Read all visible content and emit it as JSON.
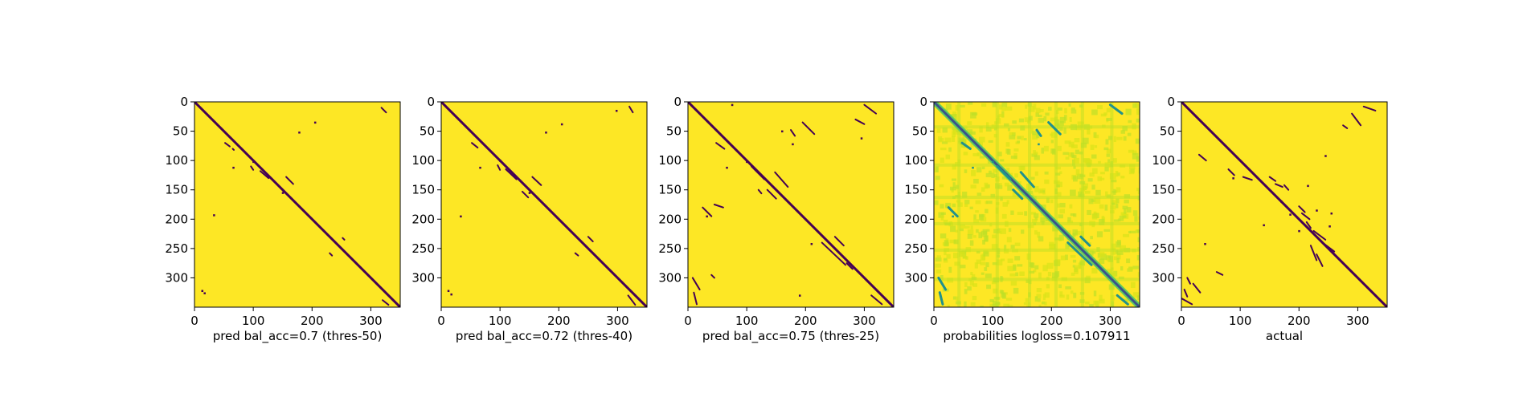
{
  "colors": {
    "background": "#fde725",
    "mark": "#440154",
    "teal": "#21918c",
    "green": "#5ec962",
    "light": "#bddf26",
    "axis": "#000000"
  },
  "chart_data": [
    {
      "type": "heatmap",
      "title": "",
      "xlabel": "pred bal_acc=0.7 (thres-50)",
      "ylabel": "",
      "xlim": [
        0,
        350
      ],
      "ylim": [
        350,
        0
      ],
      "x_ticks": [
        0,
        100,
        200,
        300
      ],
      "y_ticks": [
        0,
        50,
        100,
        150,
        200,
        250,
        300
      ],
      "colormap": "viridis",
      "features": {
        "diagonal": true,
        "segments": [
          [
            52,
            70,
            60,
            76
          ],
          [
            112,
            118,
            126,
            130
          ],
          [
            156,
            128,
            168,
            140
          ],
          [
            96,
            110,
            100,
            116
          ],
          [
            65,
            80,
            67,
            82
          ],
          [
            318,
            10,
            326,
            18
          ],
          [
            320,
            338,
            330,
            346
          ],
          [
            252,
            232,
            255,
            235
          ],
          [
            230,
            258,
            234,
            262
          ]
        ],
        "dots": [
          [
            33,
            193
          ],
          [
            13,
            322
          ],
          [
            17,
            326
          ],
          [
            178,
            52
          ],
          [
            205,
            35
          ],
          [
            66,
            112
          ],
          [
            150,
            155
          ],
          [
            100,
            102
          ]
        ]
      }
    },
    {
      "type": "heatmap",
      "title": "",
      "xlabel": "pred bal_acc=0.72 (thres-40)",
      "ylabel": "",
      "xlim": [
        0,
        350
      ],
      "ylim": [
        350,
        0
      ],
      "x_ticks": [
        0,
        100,
        200,
        300
      ],
      "y_ticks": [
        0,
        50,
        100,
        150,
        200,
        250,
        300
      ],
      "colormap": "viridis",
      "features": {
        "diagonal": true,
        "segments": [
          [
            52,
            70,
            62,
            78
          ],
          [
            110,
            115,
            128,
            132
          ],
          [
            155,
            128,
            170,
            142
          ],
          [
            138,
            153,
            148,
            163
          ],
          [
            320,
            8,
            326,
            18
          ],
          [
            318,
            330,
            330,
            346
          ],
          [
            250,
            230,
            258,
            238
          ],
          [
            228,
            258,
            233,
            262
          ],
          [
            96,
            108,
            100,
            116
          ]
        ],
        "dots": [
          [
            33,
            195
          ],
          [
            12,
            322
          ],
          [
            17,
            328
          ],
          [
            178,
            52
          ],
          [
            205,
            38
          ],
          [
            66,
            112
          ],
          [
            298,
            15
          ],
          [
            150,
            155
          ],
          [
            100,
            100
          ]
        ]
      }
    },
    {
      "type": "heatmap",
      "title": "",
      "xlabel": "pred bal_acc=0.75 (thres-25)",
      "ylabel": "",
      "xlim": [
        0,
        350
      ],
      "ylim": [
        350,
        0
      ],
      "x_ticks": [
        0,
        100,
        200,
        300
      ],
      "y_ticks": [
        0,
        50,
        100,
        150,
        200,
        250,
        300
      ],
      "colormap": "viridis",
      "features": {
        "diagonal": true,
        "segments": [
          [
            48,
            70,
            62,
            80
          ],
          [
            108,
            110,
            130,
            132
          ],
          [
            148,
            120,
            170,
            145
          ],
          [
            135,
            150,
            150,
            165
          ],
          [
            175,
            48,
            182,
            58
          ],
          [
            195,
            35,
            215,
            55
          ],
          [
            300,
            5,
            320,
            20
          ],
          [
            285,
            30,
            300,
            38
          ],
          [
            312,
            330,
            330,
            345
          ],
          [
            228,
            240,
            268,
            278
          ],
          [
            250,
            230,
            265,
            245
          ],
          [
            270,
            275,
            280,
            285
          ],
          [
            25,
            180,
            40,
            195
          ],
          [
            45,
            175,
            60,
            180
          ],
          [
            8,
            300,
            20,
            320
          ],
          [
            10,
            325,
            15,
            345
          ],
          [
            40,
            295,
            45,
            300
          ],
          [
            120,
            150,
            125,
            156
          ]
        ],
        "dots": [
          [
            66,
            112
          ],
          [
            100,
            102
          ],
          [
            178,
            72
          ],
          [
            210,
            242
          ],
          [
            190,
            330
          ],
          [
            75,
            5
          ],
          [
            295,
            62
          ],
          [
            32,
            195
          ],
          [
            160,
            50
          ]
        ]
      }
    },
    {
      "type": "heatmap",
      "title": "",
      "xlabel": "probabilities logloss=0.107911",
      "ylabel": "",
      "xlim": [
        0,
        350
      ],
      "ylim": [
        350,
        0
      ],
      "x_ticks": [
        0,
        100,
        200,
        300
      ],
      "y_ticks": [
        0,
        50,
        100,
        150,
        200,
        250,
        300
      ],
      "colormap": "viridis",
      "features": {
        "diagonal": true,
        "segments": [
          [
            48,
            70,
            62,
            80
          ],
          [
            108,
            110,
            130,
            132
          ],
          [
            148,
            120,
            170,
            145
          ],
          [
            135,
            150,
            150,
            165
          ],
          [
            175,
            48,
            182,
            58
          ],
          [
            195,
            35,
            215,
            55
          ],
          [
            300,
            5,
            320,
            20
          ],
          [
            312,
            330,
            330,
            345
          ],
          [
            228,
            240,
            268,
            278
          ],
          [
            250,
            230,
            265,
            245
          ],
          [
            25,
            180,
            40,
            195
          ],
          [
            8,
            300,
            20,
            320
          ],
          [
            10,
            325,
            15,
            345
          ]
        ],
        "dots": [
          [
            66,
            112
          ],
          [
            100,
            102
          ],
          [
            178,
            72
          ],
          [
            32,
            195
          ]
        ]
      }
    },
    {
      "type": "heatmap",
      "title": "",
      "xlabel": "actual",
      "ylabel": "",
      "xlim": [
        0,
        350
      ],
      "ylim": [
        350,
        0
      ],
      "x_ticks": [
        0,
        100,
        200,
        300
      ],
      "y_ticks": [
        0,
        50,
        100,
        150,
        200,
        250,
        300
      ],
      "colormap": "viridis",
      "features": {
        "diagonal": true,
        "segments": [
          [
            290,
            20,
            305,
            40
          ],
          [
            310,
            8,
            330,
            15
          ],
          [
            275,
            40,
            282,
            45
          ],
          [
            150,
            128,
            160,
            135
          ],
          [
            160,
            140,
            172,
            145
          ],
          [
            175,
            142,
            182,
            150
          ],
          [
            200,
            178,
            210,
            188
          ],
          [
            205,
            190,
            218,
            200
          ],
          [
            213,
            205,
            220,
            215
          ],
          [
            225,
            220,
            245,
            235
          ],
          [
            240,
            240,
            260,
            255
          ],
          [
            220,
            245,
            230,
            270
          ],
          [
            230,
            260,
            240,
            280
          ],
          [
            180,
            180,
            190,
            190
          ],
          [
            105,
            128,
            120,
            133
          ],
          [
            0,
            335,
            18,
            345
          ],
          [
            20,
            310,
            32,
            325
          ],
          [
            60,
            290,
            70,
            295
          ],
          [
            5,
            320,
            10,
            332
          ],
          [
            10,
            300,
            15,
            310
          ],
          [
            80,
            115,
            90,
            125
          ],
          [
            30,
            90,
            42,
            100
          ]
        ],
        "dots": [
          [
            215,
            143
          ],
          [
            255,
            190
          ],
          [
            140,
            210
          ],
          [
            245,
            92
          ],
          [
            200,
            220
          ],
          [
            40,
            242
          ],
          [
            88,
            130
          ],
          [
            185,
            192
          ],
          [
            170,
            170
          ],
          [
            230,
            185
          ],
          [
            252,
            212
          ]
        ]
      }
    }
  ]
}
